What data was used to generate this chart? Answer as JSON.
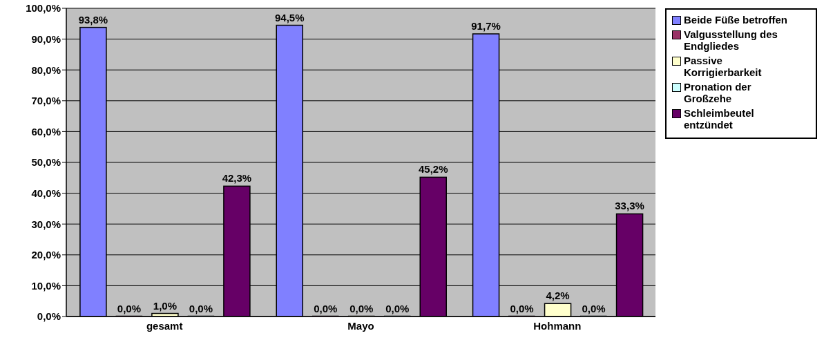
{
  "chart_data": {
    "type": "bar",
    "categories": [
      "gesamt",
      "Mayo",
      "Hohmann"
    ],
    "series": [
      {
        "name": "Beide Füße betroffen",
        "color": "#8080ff",
        "values": [
          93.8,
          94.5,
          91.7
        ],
        "value_labels": [
          "93,8%",
          "94,5%",
          "91,7%"
        ]
      },
      {
        "name": "Valgusstellung des Endgliedes",
        "color": "#993366",
        "values": [
          0,
          0,
          0
        ],
        "value_labels": [
          "0,0%",
          "0,0%",
          "0,0%"
        ]
      },
      {
        "name": "Passive Korrigierbarkeit",
        "color": "#ffffcc",
        "values": [
          1.0,
          0,
          4.2
        ],
        "value_labels": [
          "1,0%",
          "0,0%",
          "4,2%"
        ]
      },
      {
        "name": "Pronation der Großzehe",
        "color": "#ccffff",
        "values": [
          0,
          0,
          0
        ],
        "value_labels": [
          "0,0%",
          "0,0%",
          "0,0%"
        ]
      },
      {
        "name": "Schleimbeutel entzündet",
        "color": "#660066",
        "values": [
          42.3,
          45.2,
          33.3
        ],
        "value_labels": [
          "42,3%",
          "45,2%",
          "33,3%"
        ]
      }
    ],
    "ylim": [
      0,
      100
    ],
    "yticks": [
      {
        "value": 0,
        "label": "0,0%"
      },
      {
        "value": 10,
        "label": "10,0%"
      },
      {
        "value": 20,
        "label": "20,0%"
      },
      {
        "value": 30,
        "label": "30,0%"
      },
      {
        "value": 40,
        "label": "40,0%"
      },
      {
        "value": 50,
        "label": "50,0%"
      },
      {
        "value": 60,
        "label": "60,0%"
      },
      {
        "value": 70,
        "label": "70,0%"
      },
      {
        "value": 80,
        "label": "80,0%"
      },
      {
        "value": 90,
        "label": "90,0%"
      },
      {
        "value": 100,
        "label": "100,0%"
      }
    ],
    "grid": "y",
    "legend": "right"
  }
}
